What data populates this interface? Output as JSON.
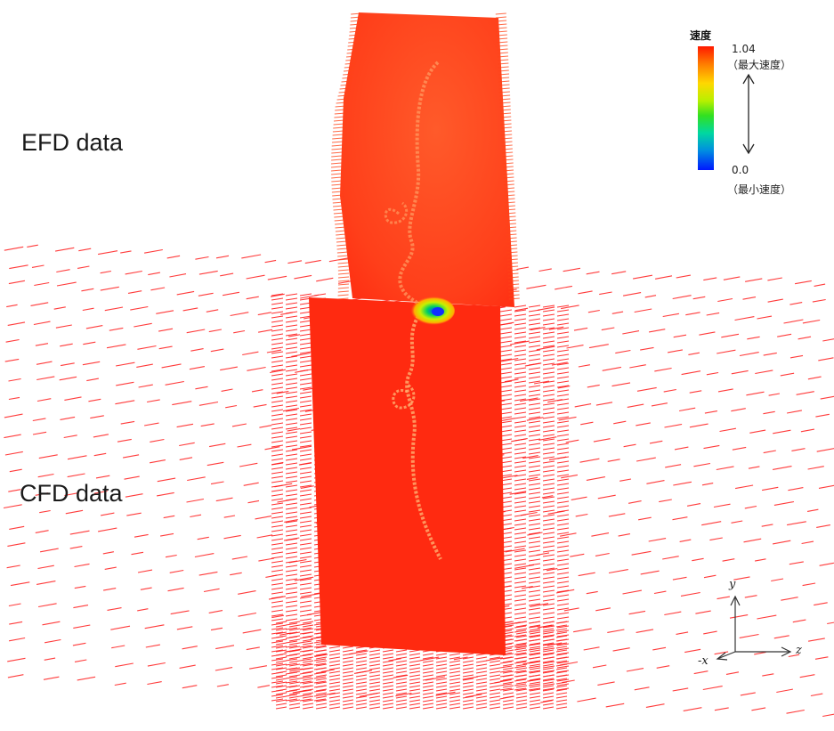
{
  "labels": {
    "efd": "EFD data",
    "cfd": "CFD data"
  },
  "legend": {
    "title": "速度",
    "max_value": "1.04",
    "max_note": "（最大速度）",
    "min_value": "0.0",
    "min_note": "（最小速度）",
    "colors": [
      "#ff1800",
      "#ffd800",
      "#32e020",
      "#0018ff"
    ]
  },
  "axes": {
    "y": "y",
    "z": "z",
    "x": "-x"
  },
  "colors": {
    "field_red": "#ff2a10",
    "efd_orange": "#ff4418",
    "vector_red": "#ff1a1a",
    "track": "#ffb070"
  }
}
